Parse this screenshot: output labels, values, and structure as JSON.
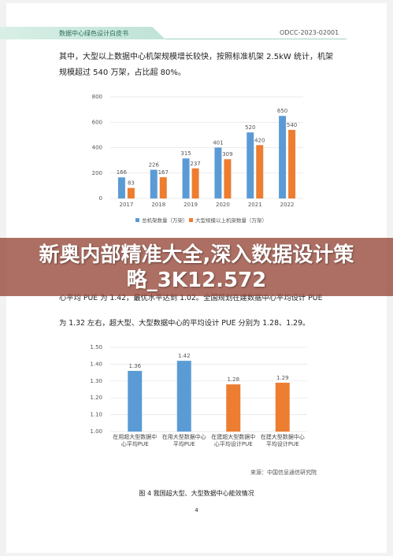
{
  "header": {
    "title": "数据中心绿色设计白皮书",
    "code": "ODCC-2023-02001"
  },
  "paragraph_1": "其中，大型以上数据中心机架规模增长较快，按照标准机架 2.5kW 统计，机架规模超过 540 万架，占比超 80%。",
  "banner": "新奥内部精准大全,深入数据设计策略_3K12.572",
  "paragraph_2": [
    "心平均 PUE 为 1.42，最优水平达到 1.02。全国规划在建数据中心平均设计 PUE",
    "为 1.32 左右，超大型、大型数据中心的平均设计 PUE 分别为 1.28、1.29。"
  ],
  "source": "来源：中国信息通信研究院",
  "caption": "图 4 我国超大型、大型数据中心能效情况",
  "page_number": "4",
  "chart_data": [
    {
      "type": "bar",
      "categories": [
        "2017",
        "2018",
        "2019",
        "2020",
        "2021",
        "2022"
      ],
      "series": [
        {
          "name": "总机架数量（万架）",
          "color": "#5b9bd5",
          "values": [
            166,
            226,
            315,
            401,
            520,
            650
          ]
        },
        {
          "name": "大型规模以上机架数量（万架）",
          "color": "#ed7d31",
          "values": [
            83,
            167,
            237,
            309,
            420,
            540
          ]
        }
      ],
      "ylim": [
        0,
        800
      ],
      "yticks": [
        0,
        200,
        400,
        600,
        800
      ],
      "grid": true
    },
    {
      "type": "bar",
      "categories": [
        "在用超大型数据中心平均PUE",
        "在用大型数据中心平均PUE",
        "在建超大型数据中心平均设计PUE",
        "在建大型数据中心平均设计PUE"
      ],
      "values": [
        1.36,
        1.42,
        1.28,
        1.29
      ],
      "colors": [
        "#5b9bd5",
        "#5b9bd5",
        "#ed7d31",
        "#ed7d31"
      ],
      "ylim": [
        1.0,
        1.5
      ],
      "yticks": [
        {
          "value": 1.0,
          "label": "1.00"
        },
        {
          "value": 1.1,
          "label": "1.10"
        },
        {
          "value": 1.2,
          "label": "1.20"
        },
        {
          "value": 1.3,
          "label": "1.30"
        },
        {
          "value": 1.4,
          "label": "1.40"
        },
        {
          "value": 1.5,
          "label": "1.50"
        }
      ],
      "grid": true
    }
  ]
}
